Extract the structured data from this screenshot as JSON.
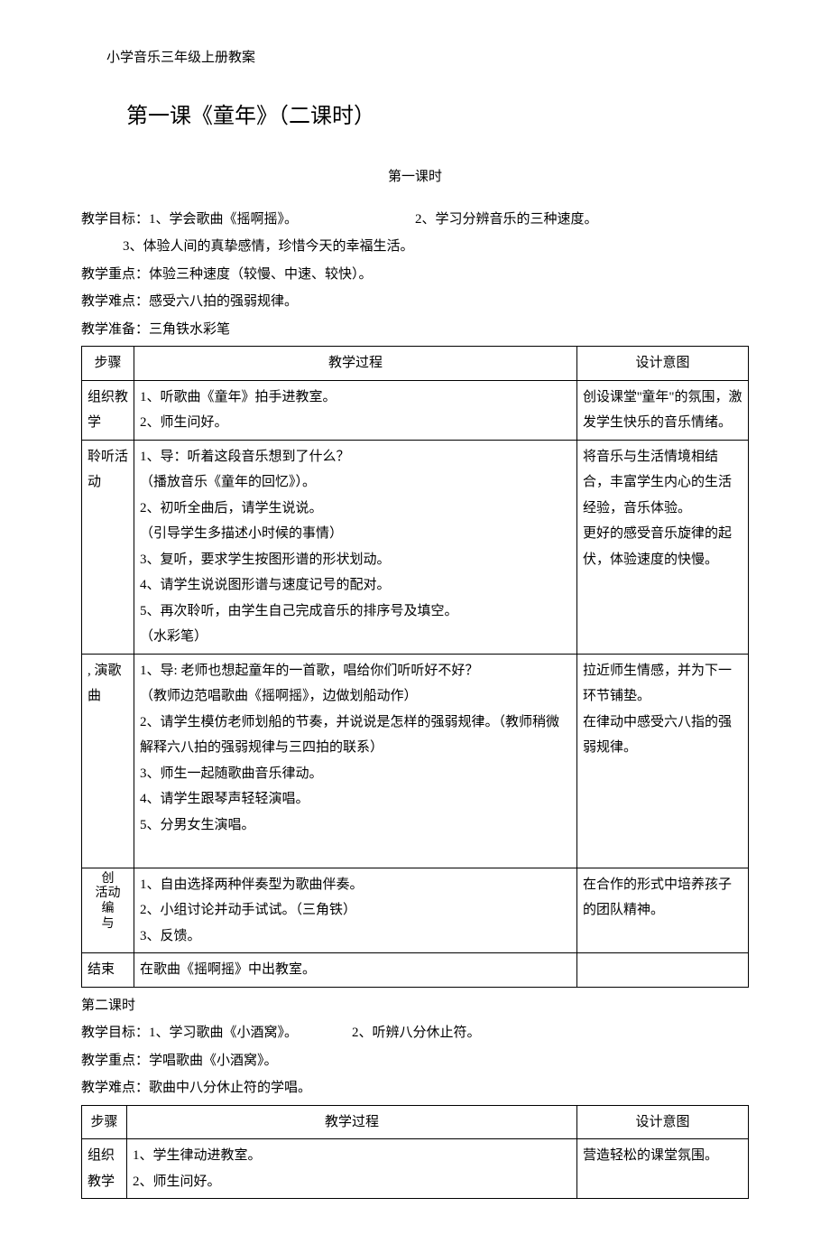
{
  "doc_title": "小学音乐三年级上册教案",
  "lesson_title": "第一课《童年》（二课时）",
  "period1": {
    "subtitle": "第一课时",
    "goals_label": "教学目标：",
    "goal1": "1、学会歌曲《摇啊摇》。",
    "goal2": "2、学习分辨音乐的三种速度。",
    "goal3": "3、体验人间的真挚感情，珍惜今天的幸福生活。",
    "focus": "教学重点：体验三种速度（较慢、中速、较快）。",
    "difficulty": "教学难点：感受六八拍的强弱规律。",
    "prep": "教学准备：三角铁水彩笔",
    "headers": {
      "step": "步骤",
      "process": "教学过程",
      "intent": "设计意图"
    },
    "rows": [
      {
        "step": "组织教学",
        "process": "1、听歌曲《童年》拍手进教室。\n2、师生问好。",
        "intent": "创设课堂''童年\"的氛围，激发学生快乐的音乐情绪。"
      },
      {
        "step": "聆听活动",
        "process": "1、导：听着这段音乐想到了什么？\n（播放音乐《童年的回忆》）。\n2、初听全曲后，请学生说说。\n（引导学生多描述小时候的事情）\n3、复听，要求学生按图形谱的形状划动。\n4、请学生说说图形谱与速度记号的配对。\n5、再次聆听，由学生自己完成音乐的排序号及填空。\n（水彩笔）",
        "intent": "将音乐与生活情境相结合，丰富学生内心的生活经验，音乐体验。\n更好的感受音乐旋律的起伏，体验速度的快慢。"
      },
      {
        "step": ", 演歌曲",
        "process": "1、导: 老师也想起童年的一首歌，唱给你们听听好不好？\n（教师边范唱歌曲《摇啊摇》，边做划船动作）\n2、请学生模仿老师划船的节奏，并说说是怎样的强弱规律。（教师稍微解释六八拍的强弱规律与三四拍的联系）\n3、师生一起随歌曲音乐律动。\n4、请学生跟琴声轻轻演唱。\n5、分男女生演唱。\n\n",
        "intent": "拉近师生情感，并为下一环节铺垫。\n在律动中感受六八指的强弱规律。"
      },
      {
        "step": "创\n活动\n编\n与",
        "process": "1、自由选择两种伴奏型为歌曲伴奏。\n2、小组讨论并动手试试。（三角铁）\n3、反馈。",
        "intent": "在合作的形式中培养孩子的团队精神。"
      },
      {
        "step": "结束",
        "process": "在歌曲《摇啊摇》中出教室。",
        "intent": ""
      }
    ]
  },
  "period2": {
    "header": "第二课时",
    "goals_label": "教学目标：",
    "goal1": "1、学习歌曲《小酒窝》。",
    "goal2": "2、听辨八分休止符。",
    "focus": "教学重点：学唱歌曲《小酒窝》。",
    "difficulty": "教学难点：歌曲中八分休止符的学唱。",
    "headers": {
      "step": "步骤",
      "process": "教学过程",
      "intent": "设计意图"
    },
    "rows": [
      {
        "step": "组织\n教学",
        "process": "1、学生律动进教室。\n2、师生问好。",
        "intent": "营造轻松的课堂氛围。"
      }
    ]
  }
}
